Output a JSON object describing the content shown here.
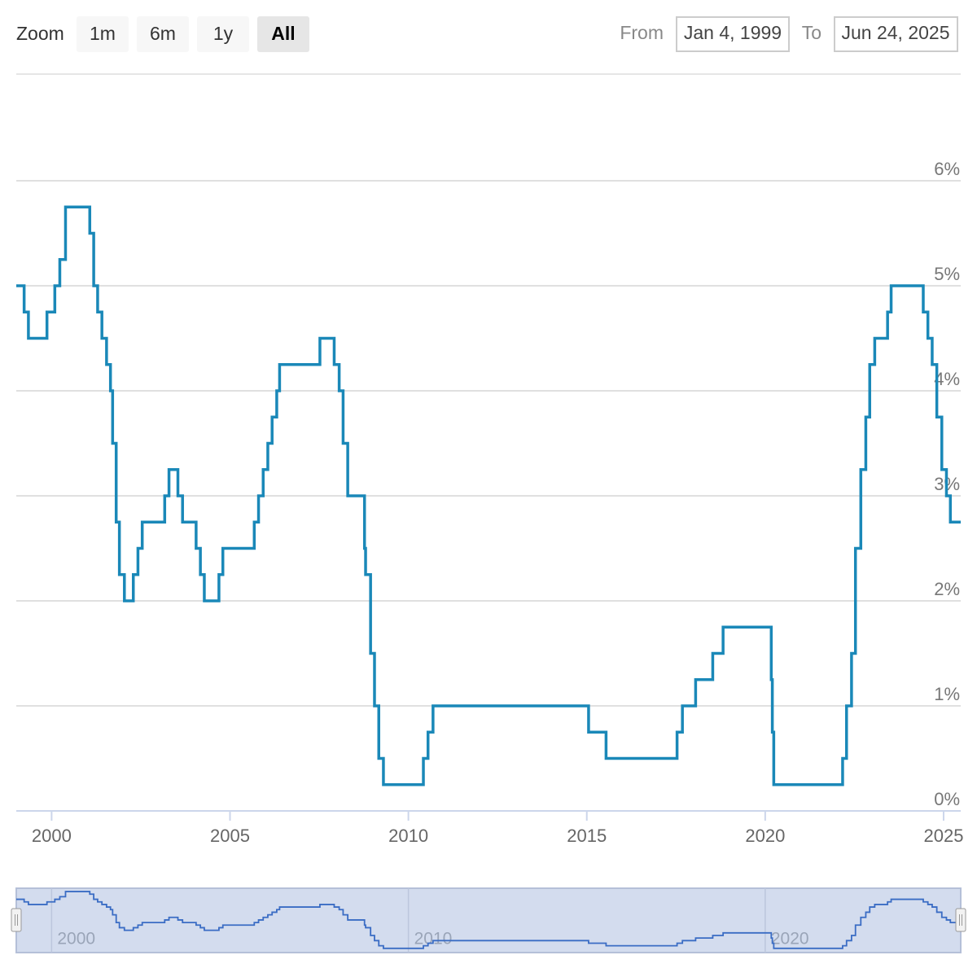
{
  "controls": {
    "zoom_label": "Zoom",
    "buttons": [
      "1m",
      "6m",
      "1y",
      "All"
    ],
    "selected": 3,
    "from_label": "From",
    "from": "Jan 4, 1999",
    "to_label": "To",
    "to": "Jun 24, 2025"
  },
  "chart_data": {
    "type": "line",
    "step": true,
    "color": "#1a88b8",
    "x": [
      1999.01,
      1999.23,
      1999.35,
      1999.87,
      2000.09,
      2000.23,
      2000.39,
      2001.07,
      2001.18,
      2001.29,
      2001.41,
      2001.54,
      2001.65,
      2001.71,
      2001.81,
      2001.9,
      2002.04,
      2002.29,
      2002.42,
      2002.54,
      2003.17,
      2003.29,
      2003.54,
      2003.67,
      2004.05,
      2004.17,
      2004.28,
      2004.69,
      2004.8,
      2005.68,
      2005.8,
      2005.93,
      2006.06,
      2006.18,
      2006.31,
      2006.39,
      2007.52,
      2007.92,
      2008.06,
      2008.17,
      2008.3,
      2008.77,
      2008.8,
      2008.94,
      2009.05,
      2009.17,
      2009.3,
      2010.42,
      2010.55,
      2010.69,
      2015.05,
      2015.54,
      2017.53,
      2017.68,
      2018.05,
      2018.53,
      2018.82,
      2020.17,
      2020.2,
      2020.24,
      2022.17,
      2022.28,
      2022.42,
      2022.53,
      2022.68,
      2022.82,
      2022.93,
      2023.07,
      2023.43,
      2023.53,
      2024.43,
      2024.56,
      2024.68,
      2024.81,
      2024.95,
      2025.08,
      2025.19,
      2025.48
    ],
    "values": [
      5.0,
      4.75,
      4.5,
      4.75,
      5.0,
      5.25,
      5.75,
      5.5,
      5.0,
      4.75,
      4.5,
      4.25,
      4.0,
      3.5,
      2.75,
      2.25,
      2.0,
      2.25,
      2.5,
      2.75,
      3.0,
      3.25,
      3.0,
      2.75,
      2.5,
      2.25,
      2.0,
      2.25,
      2.5,
      2.75,
      3.0,
      3.25,
      3.5,
      3.75,
      4.0,
      4.25,
      4.5,
      4.25,
      4.0,
      3.5,
      3.0,
      2.5,
      2.25,
      1.5,
      1.0,
      0.5,
      0.25,
      0.5,
      0.75,
      1.0,
      0.75,
      0.5,
      0.75,
      1.0,
      1.25,
      1.5,
      1.75,
      1.25,
      0.75,
      0.25,
      0.5,
      1.0,
      1.5,
      2.5,
      3.25,
      3.75,
      4.25,
      4.5,
      4.75,
      5.0,
      4.75,
      4.5,
      4.25,
      3.75,
      3.25,
      3.0,
      2.75,
      2.75
    ],
    "xlim": [
      1999.01,
      2025.48
    ],
    "xticks": [
      2000,
      2005,
      2010,
      2015,
      2020,
      2025
    ],
    "ylim": [
      0,
      7
    ],
    "yticks": [
      {
        "value": 0,
        "label": "0%"
      },
      {
        "value": 1,
        "label": "1%"
      },
      {
        "value": 2,
        "label": "2%"
      },
      {
        "value": 3,
        "label": "3%"
      },
      {
        "value": 4,
        "label": "4%"
      },
      {
        "value": 5,
        "label": "5%"
      },
      {
        "value": 6,
        "label": "6%"
      }
    ],
    "grid": true,
    "navigator_xticks": [
      2000,
      2010,
      2020
    ]
  }
}
